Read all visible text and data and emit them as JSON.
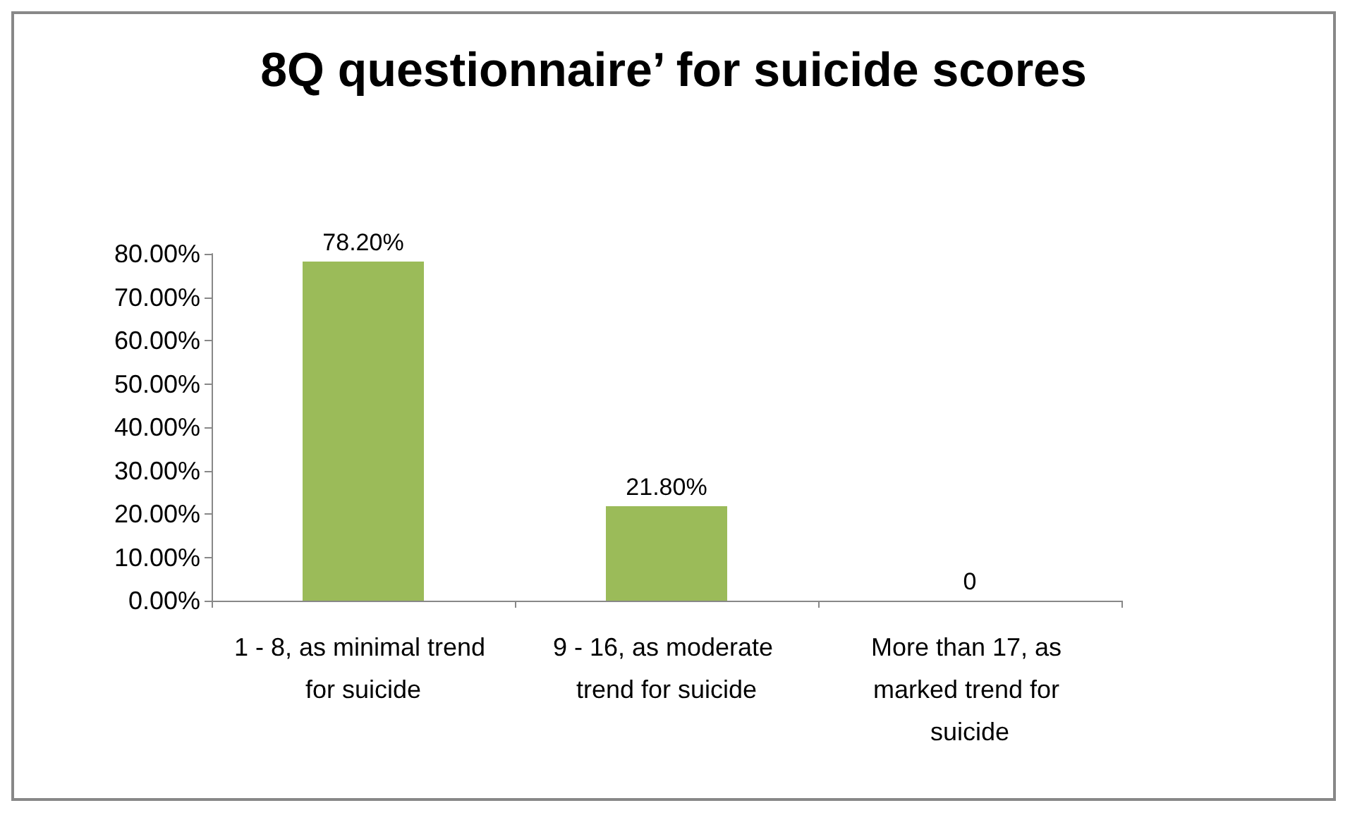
{
  "chart_data": {
    "type": "bar",
    "title": "8Q questionnaire’ for suicide scores",
    "categories": [
      "1 - 8, as minimal trend for suicide",
      "9 - 16, as moderate trend for suicide",
      "More than 17, as marked trend for suicide"
    ],
    "values": [
      78.2,
      21.8,
      0
    ],
    "value_labels": [
      "78.20%",
      "21.80%",
      "0"
    ],
    "color": "#9bbb59",
    "ylim": [
      0,
      80
    ],
    "yticks": [
      {
        "value": 0,
        "label": "0.00%"
      },
      {
        "value": 10,
        "label": "10.00%"
      },
      {
        "value": 20,
        "label": "20.00%"
      },
      {
        "value": 30,
        "label": "30.00%"
      },
      {
        "value": 40,
        "label": "40.00%"
      },
      {
        "value": 50,
        "label": "50.00%"
      },
      {
        "value": 60,
        "label": "60.00%"
      },
      {
        "value": 70,
        "label": "70.00%"
      },
      {
        "value": 80,
        "label": "80.00%"
      }
    ],
    "grid": false
  }
}
